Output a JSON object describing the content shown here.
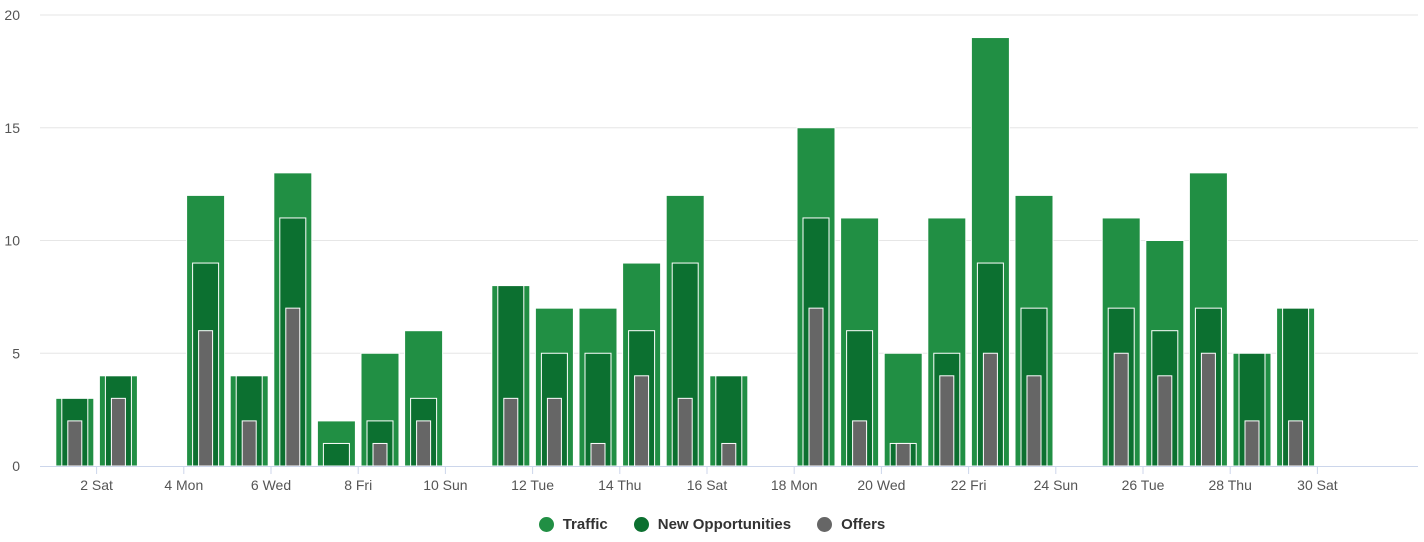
{
  "chart_data": {
    "type": "bar",
    "title": "",
    "xlabel": "",
    "ylabel": "",
    "ylim": [
      0,
      20
    ],
    "yticks": [
      0,
      5,
      10,
      15,
      20
    ],
    "categories": [
      "1",
      "2",
      "3",
      "4",
      "5",
      "6",
      "7",
      "8",
      "9",
      "10",
      "11",
      "12",
      "13",
      "14",
      "15",
      "16",
      "17",
      "18",
      "19",
      "20",
      "21",
      "22",
      "23",
      "24",
      "25",
      "26",
      "27",
      "28",
      "29",
      "30"
    ],
    "xtick_labels": [
      {
        "day": 2,
        "label": "2 Sat"
      },
      {
        "day": 4,
        "label": "4 Mon"
      },
      {
        "day": 6,
        "label": "6 Wed"
      },
      {
        "day": 8,
        "label": "8 Fri"
      },
      {
        "day": 10,
        "label": "10 Sun"
      },
      {
        "day": 12,
        "label": "12 Tue"
      },
      {
        "day": 14,
        "label": "14 Thu"
      },
      {
        "day": 16,
        "label": "16 Sat"
      },
      {
        "day": 18,
        "label": "18 Mon"
      },
      {
        "day": 20,
        "label": "20 Wed"
      },
      {
        "day": 22,
        "label": "22 Fri"
      },
      {
        "day": 24,
        "label": "24 Sun"
      },
      {
        "day": 26,
        "label": "26 Tue"
      },
      {
        "day": 28,
        "label": "28 Thu"
      },
      {
        "day": 30,
        "label": "30 Sat"
      }
    ],
    "series": [
      {
        "name": "Traffic",
        "color": "#218f44",
        "values": [
          3,
          4,
          0,
          12,
          4,
          13,
          2,
          5,
          6,
          0,
          8,
          7,
          7,
          9,
          12,
          4,
          0,
          15,
          11,
          5,
          11,
          19,
          12,
          0,
          11,
          10,
          13,
          5,
          7,
          0
        ]
      },
      {
        "name": "New Opportunities",
        "color": "#0c7030",
        "values": [
          3,
          4,
          0,
          9,
          4,
          11,
          1,
          2,
          3,
          0,
          8,
          5,
          5,
          6,
          9,
          4,
          0,
          11,
          6,
          1,
          5,
          9,
          7,
          0,
          7,
          6,
          7,
          5,
          7,
          0
        ]
      },
      {
        "name": "Offers",
        "color": "#666666",
        "values": [
          2,
          3,
          0,
          6,
          2,
          7,
          0,
          1,
          2,
          0,
          3,
          3,
          1,
          4,
          3,
          1,
          0,
          7,
          2,
          1,
          4,
          5,
          4,
          0,
          5,
          4,
          5,
          2,
          2,
          0
        ]
      }
    ],
    "legend_position": "bottom-center",
    "grid": true
  }
}
